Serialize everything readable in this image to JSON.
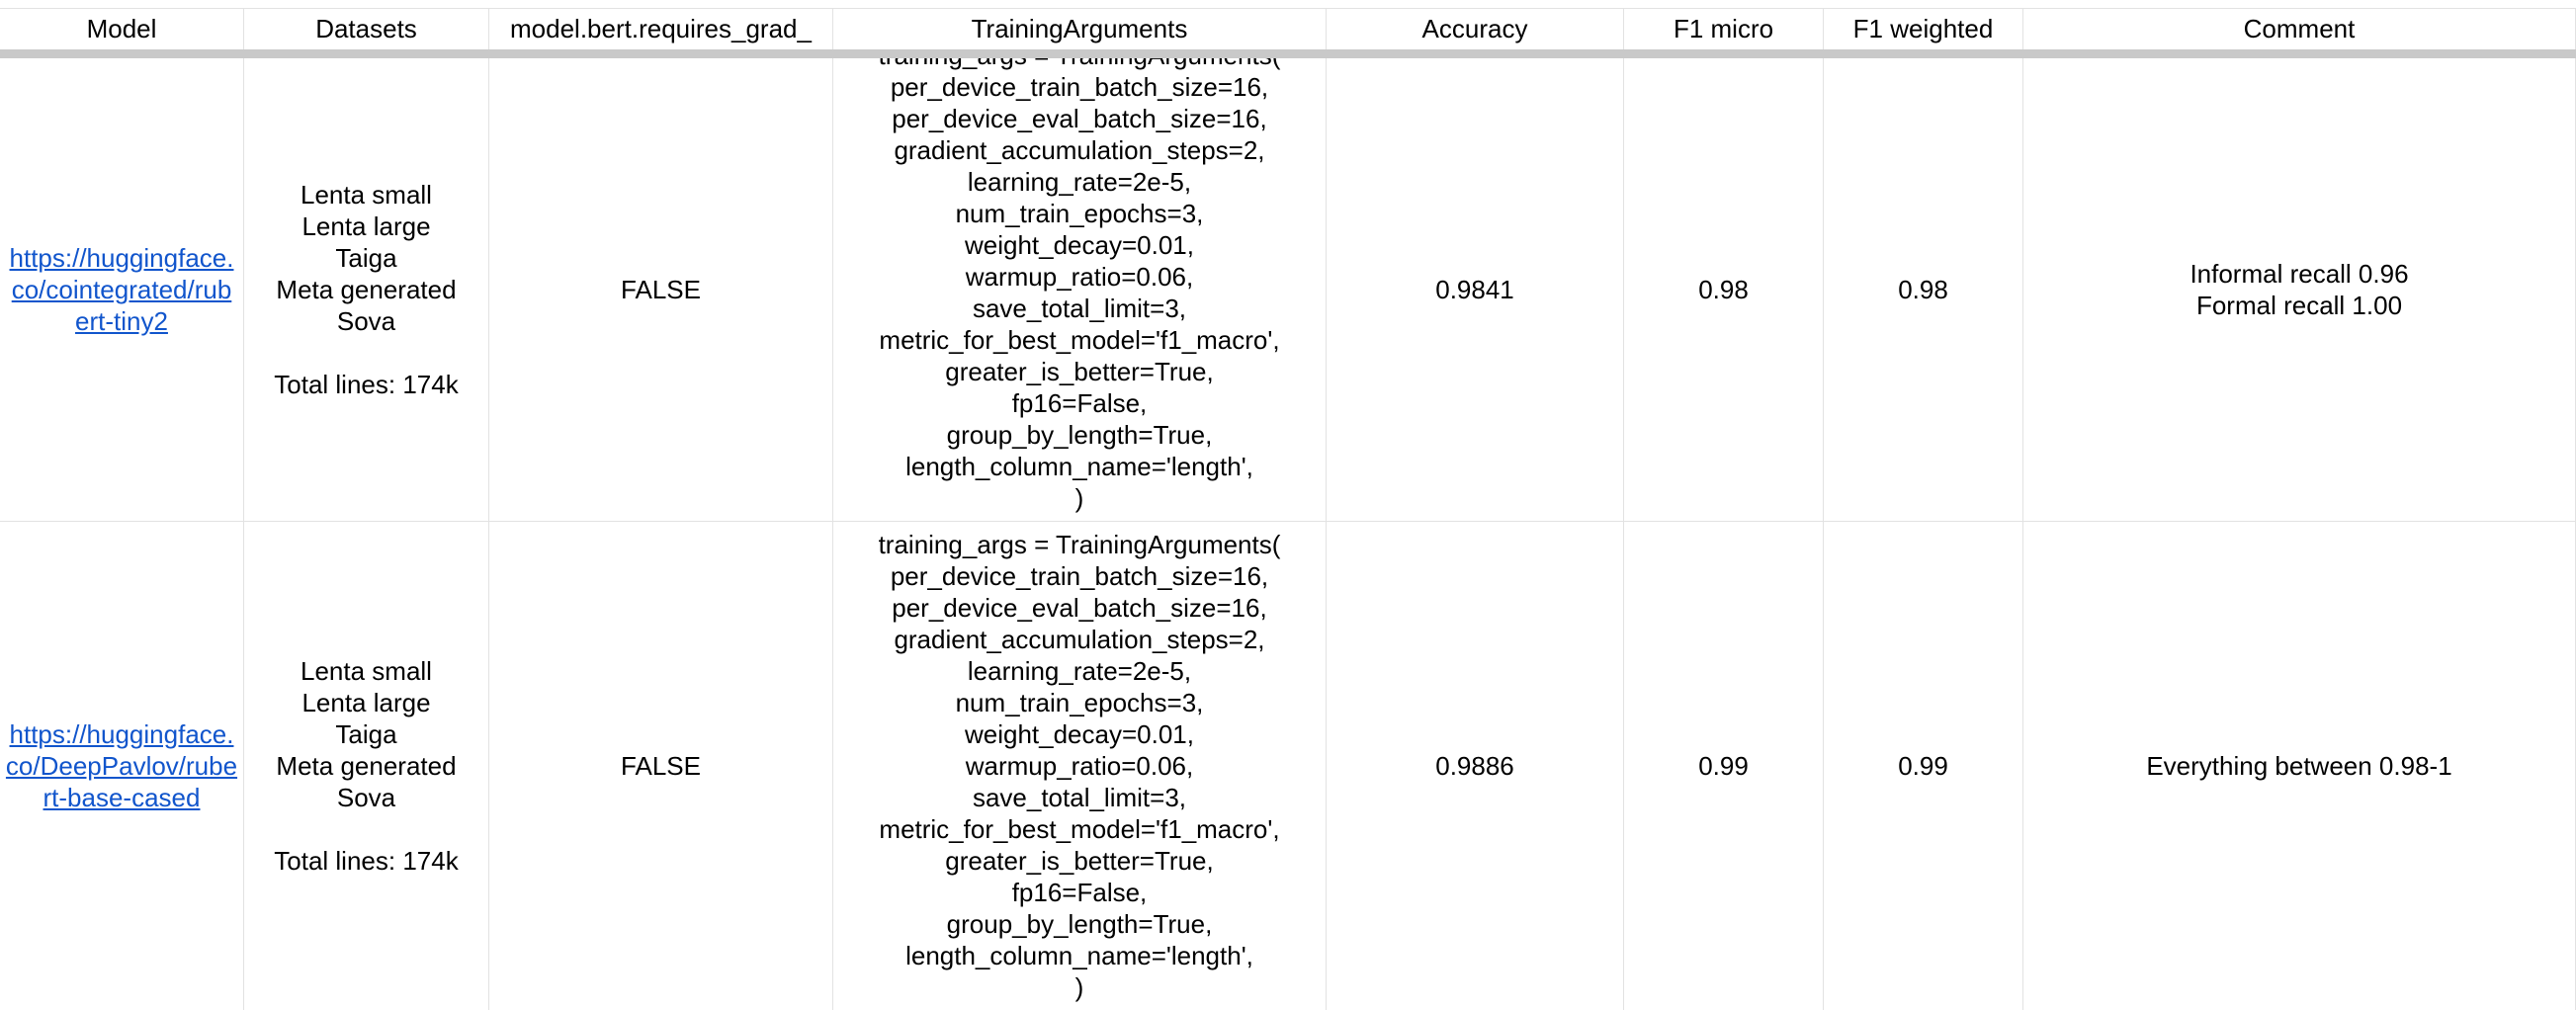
{
  "headers": [
    "Model",
    "Datasets",
    "model.bert.requires_grad_",
    "TrainingArguments",
    "Accuracy",
    "F1 micro",
    "F1 weighted",
    "Comment"
  ],
  "rows": [
    {
      "model_url": "https://huggingface.co/cointegrated/rubert-tiny2",
      "datasets": [
        "Lenta small",
        "Lenta large",
        "Taiga",
        "Meta generated",
        "Sova",
        "",
        "Total lines: 174k"
      ],
      "requires_grad": "FALSE",
      "training_args": [
        "training_args = TrainingArguments(",
        "per_device_train_batch_size=16,",
        "per_device_eval_batch_size=16,",
        "gradient_accumulation_steps=2,",
        "learning_rate=2e-5,",
        "num_train_epochs=3,",
        "weight_decay=0.01,",
        "warmup_ratio=0.06,",
        "save_total_limit=3,",
        "metric_for_best_model='f1_macro',",
        "greater_is_better=True,",
        "fp16=False,",
        "group_by_length=True,",
        "length_column_name='length',",
        ")"
      ],
      "accuracy": "0.9841",
      "f1_micro": "0.98",
      "f1_weighted": "0.98",
      "comment": [
        "Informal recall 0.96",
        "Formal recall 1.00"
      ]
    },
    {
      "model_url": "https://huggingface.co/DeepPavlov/rubert-base-cased",
      "datasets": [
        "Lenta small",
        "Lenta large",
        "Taiga",
        "Meta generated",
        "Sova",
        "",
        "Total lines: 174k"
      ],
      "requires_grad": "FALSE",
      "training_args": [
        "training_args = TrainingArguments(",
        "per_device_train_batch_size=16,",
        "per_device_eval_batch_size=16,",
        "gradient_accumulation_steps=2,",
        "learning_rate=2e-5,",
        "num_train_epochs=3,",
        "weight_decay=0.01,",
        "warmup_ratio=0.06,",
        "save_total_limit=3,",
        "metric_for_best_model='f1_macro',",
        "greater_is_better=True,",
        "fp16=False,",
        "group_by_length=True,",
        "length_column_name='length',",
        ")"
      ],
      "accuracy": "0.9886",
      "f1_micro": "0.99",
      "f1_weighted": "0.99",
      "comment": [
        "Everything between 0.98-1"
      ]
    }
  ],
  "colors": {
    "link": "#1155cc",
    "gridline": "#e2e2e2",
    "freeze_bar": "#c9c9c9"
  }
}
